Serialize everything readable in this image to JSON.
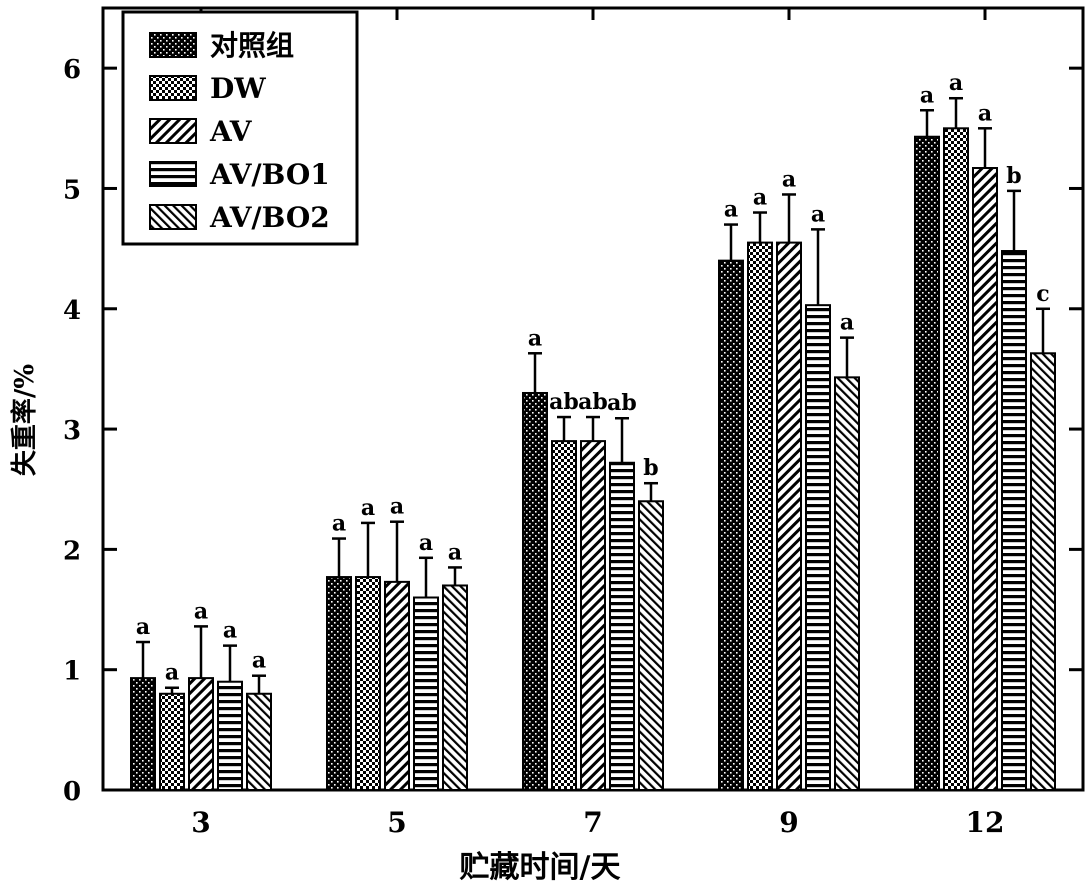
{
  "chart_data": {
    "type": "bar",
    "xlabel": "贮藏时间/天",
    "ylabel": "失重率/%",
    "categories": [
      "3",
      "5",
      "7",
      "9",
      "12"
    ],
    "ylim": [
      0,
      6.5
    ],
    "yticks": [
      0,
      1,
      2,
      3,
      4,
      5,
      6
    ],
    "legend_position": "top-left",
    "series": [
      {
        "name": "对照组",
        "pattern": "dense-dots",
        "values": [
          0.93,
          1.77,
          3.3,
          4.4,
          5.43
        ],
        "errors": [
          0.3,
          0.32,
          0.33,
          0.3,
          0.22
        ],
        "sig": [
          "a",
          "a",
          "a",
          "a",
          "a"
        ]
      },
      {
        "name": "DW",
        "pattern": "checker",
        "values": [
          0.8,
          1.77,
          2.9,
          4.55,
          5.5
        ],
        "errors": [
          0.05,
          0.45,
          0.2,
          0.25,
          0.25
        ],
        "sig": [
          "a",
          "a",
          "ab",
          "a",
          "a"
        ]
      },
      {
        "name": "AV",
        "pattern": "diagonal",
        "values": [
          0.93,
          1.73,
          2.9,
          4.55,
          5.17
        ],
        "errors": [
          0.43,
          0.5,
          0.2,
          0.4,
          0.33
        ],
        "sig": [
          "a",
          "a",
          "ab",
          "a",
          "a"
        ]
      },
      {
        "name": "AV/BO1",
        "pattern": "horizontal",
        "values": [
          0.9,
          1.6,
          2.72,
          4.03,
          4.48
        ],
        "errors": [
          0.3,
          0.33,
          0.37,
          0.63,
          0.5
        ],
        "sig": [
          "a",
          "a",
          "ab",
          "a",
          "b"
        ]
      },
      {
        "name": "AV/BO2",
        "pattern": "cross-diagonal",
        "values": [
          0.8,
          1.7,
          2.4,
          3.43,
          3.63
        ],
        "errors": [
          0.15,
          0.15,
          0.15,
          0.33,
          0.37
        ],
        "sig": [
          "a",
          "a",
          "b",
          "a",
          "c"
        ]
      }
    ]
  }
}
